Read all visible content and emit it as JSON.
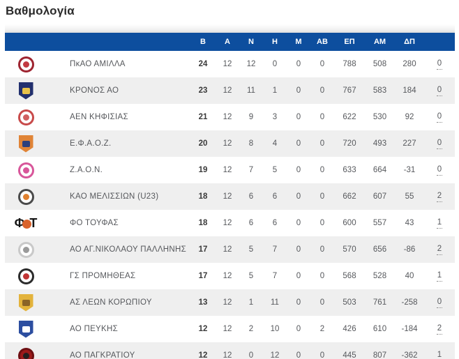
{
  "title": "Βαθμολογία",
  "colors": {
    "header_bg": "#0d4e9e",
    "header_text": "#ffffff",
    "row_bg": "#ffffff",
    "row_alt_bg": "#efefef",
    "body_text": "#56585c",
    "points_text": "#3a3a3a",
    "title_text": "#2b2b2b"
  },
  "table": {
    "headers": [
      "Β",
      "Α",
      "Ν",
      "Η",
      "Μ",
      "ΑΒ",
      "ΕΠ",
      "ΑΜ",
      "ΔΠ",
      ""
    ],
    "teams": [
      {
        "name": "ΠκΑΟ ΑΜΙΛΛΑ",
        "values": [
          "24",
          "12",
          "12",
          "0",
          "0",
          "0",
          "788",
          "508",
          "280"
        ],
        "note": "0",
        "logo": {
          "type": "circle",
          "ring": "#9e2430",
          "fill": "#ffffff",
          "accent": "#c23a42"
        }
      },
      {
        "name": "ΚΡΟΝΟΣ ΑΟ",
        "values": [
          "23",
          "12",
          "11",
          "1",
          "0",
          "0",
          "767",
          "583",
          "184"
        ],
        "note": "0",
        "logo": {
          "type": "shield",
          "fill": "#22306e",
          "accent": "#e8c24a"
        }
      },
      {
        "name": "ΑΕΝ ΚΗΦΙΣΙΑΣ",
        "values": [
          "21",
          "12",
          "9",
          "3",
          "0",
          "0",
          "622",
          "530",
          "92"
        ],
        "note": "0",
        "logo": {
          "type": "circle",
          "ring": "#c84a4a",
          "fill": "#ffffff",
          "accent": "#d06060"
        }
      },
      {
        "name": "Ε.Φ.Α.Ο.Ζ.",
        "values": [
          "20",
          "12",
          "8",
          "4",
          "0",
          "0",
          "720",
          "493",
          "227"
        ],
        "note": "0",
        "logo": {
          "type": "shield",
          "fill": "#e08437",
          "accent": "#2b3f7d"
        }
      },
      {
        "name": "Ζ.Α.Ο.Ν.",
        "values": [
          "19",
          "12",
          "7",
          "5",
          "0",
          "0",
          "633",
          "664",
          "-31"
        ],
        "note": "0",
        "logo": {
          "type": "circle",
          "ring": "#d8569a",
          "fill": "#ffffff",
          "accent": "#d8569a"
        }
      },
      {
        "name": "ΚΑΟ ΜΕΛΙΣΣΙΩΝ (U23)",
        "values": [
          "18",
          "12",
          "6",
          "6",
          "0",
          "0",
          "662",
          "607",
          "55"
        ],
        "note": "2",
        "logo": {
          "type": "circle",
          "ring": "#4a4a4a",
          "fill": "#ffffff",
          "accent": "#e0812f"
        }
      },
      {
        "name": "ΦΟ ΤΟΥΦΑΣ",
        "values": [
          "18",
          "12",
          "6",
          "6",
          "0",
          "0",
          "600",
          "557",
          "43"
        ],
        "note": "1",
        "logo": {
          "type": "glyph",
          "text_left": "Φ",
          "text_right": "Τ",
          "color": "#141414",
          "ball": "#d9622b"
        }
      },
      {
        "name": "ΑΟ ΑΓ.ΝΙΚΟΛΑΟΥ ΠΑΛΛΗΝΗΣ",
        "values": [
          "17",
          "12",
          "5",
          "7",
          "0",
          "0",
          "570",
          "656",
          "-86"
        ],
        "note": "2",
        "logo": {
          "type": "circle",
          "ring": "#c9c9c9",
          "fill": "#fdfdfd",
          "accent": "#9a9a9a"
        }
      },
      {
        "name": "ΓΣ ΠΡΟΜΗΘΕΑΣ",
        "values": [
          "17",
          "12",
          "5",
          "7",
          "0",
          "0",
          "568",
          "528",
          "40"
        ],
        "note": "1",
        "logo": {
          "type": "circle",
          "ring": "#2b2b2b",
          "fill": "#ffffff",
          "accent": "#c03434"
        }
      },
      {
        "name": "ΑΣ ΛΕΩΝ ΚΟΡΩΠΙΟΥ",
        "values": [
          "13",
          "12",
          "1",
          "11",
          "0",
          "0",
          "503",
          "761",
          "-258"
        ],
        "note": "0",
        "logo": {
          "type": "shield",
          "fill": "#e3b33c",
          "accent": "#8a6327"
        }
      },
      {
        "name": "ΑΟ ΠΕΥΚΗΣ",
        "values": [
          "12",
          "12",
          "2",
          "10",
          "0",
          "2",
          "426",
          "610",
          "-184"
        ],
        "note": "2",
        "logo": {
          "type": "shield",
          "fill": "#2c4ea0",
          "accent": "#ffffff"
        }
      },
      {
        "name": "ΑΟ ΠΑΓΚΡΑΤΙΟΥ",
        "values": [
          "12",
          "12",
          "0",
          "12",
          "0",
          "0",
          "445",
          "807",
          "-362"
        ],
        "note": "1",
        "logo": {
          "type": "circle",
          "ring": "#6e0f12",
          "fill": "#9c1a1a",
          "accent": "#241f1f"
        }
      }
    ]
  }
}
